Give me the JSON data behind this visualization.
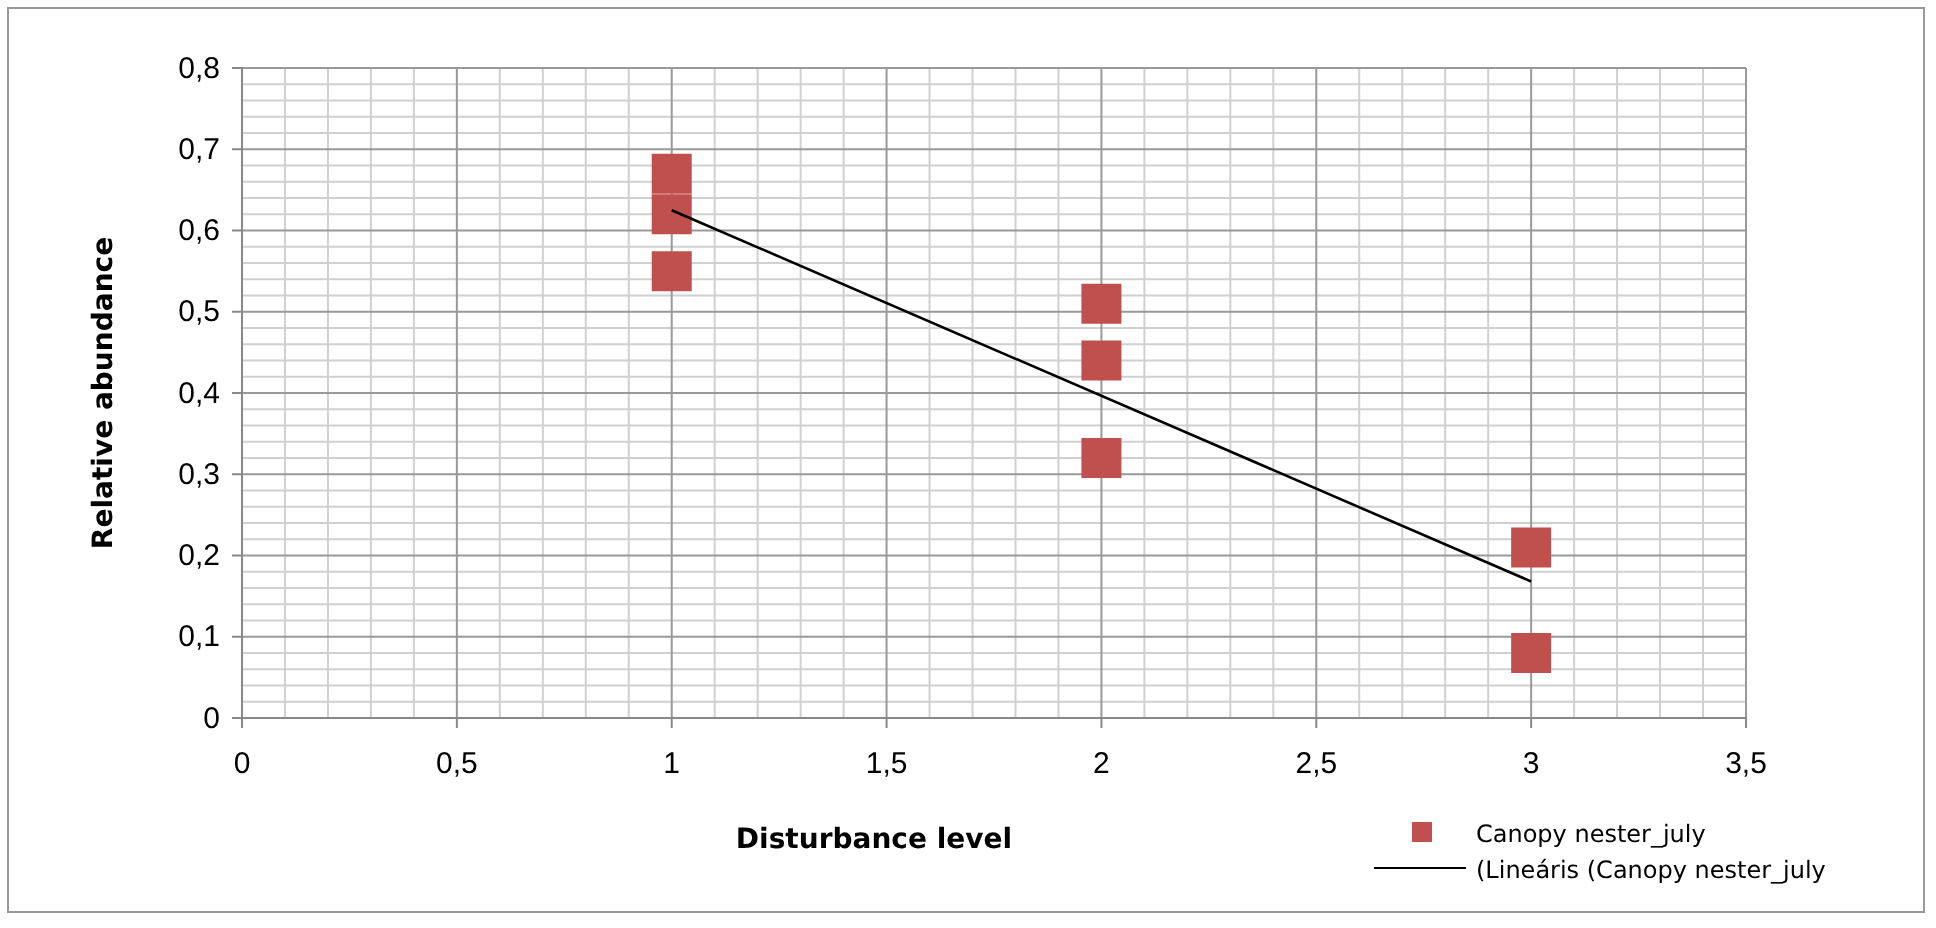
{
  "chart_data": {
    "type": "scatter",
    "xlabel": "Disturbance level",
    "ylabel": "Relative abundance",
    "xlim": [
      0,
      3.5
    ],
    "xticks": [
      {
        "value": 0,
        "label": "0"
      },
      {
        "value": 0.5,
        "label": "0,5"
      },
      {
        "value": 1,
        "label": "1"
      },
      {
        "value": 1.5,
        "label": "1,5"
      },
      {
        "value": 2,
        "label": "2"
      },
      {
        "value": 2.5,
        "label": "2,5"
      },
      {
        "value": 3,
        "label": "3"
      },
      {
        "value": 3.5,
        "label": "3,5"
      }
    ],
    "ylim": [
      0,
      0.8
    ],
    "yticks": [
      {
        "value": 0,
        "label": "0"
      },
      {
        "value": 0.1,
        "label": "0,1"
      },
      {
        "value": 0.2,
        "label": "0,2"
      },
      {
        "value": 0.3,
        "label": "0,3"
      },
      {
        "value": 0.4,
        "label": "0,4"
      },
      {
        "value": 0.5,
        "label": "0,5"
      },
      {
        "value": 0.6,
        "label": "0,6"
      },
      {
        "value": 0.7,
        "label": "0,7"
      },
      {
        "value": 0.8,
        "label": "0,8"
      }
    ],
    "grid": true,
    "legend": "bottom right",
    "series": [
      {
        "name": "Canopy nester_july",
        "marker": "square",
        "color": "#c0504d",
        "x": [
          1,
          1,
          1,
          2,
          2,
          2,
          3,
          3
        ],
        "values": [
          0.67,
          0.62,
          0.55,
          0.51,
          0.44,
          0.32,
          0.21,
          0.08
        ]
      },
      {
        "name": "(Lineáris (Canopy nester_july",
        "type": "line",
        "marker": "none",
        "color": "#000000",
        "line_style": "solid",
        "x": [
          1,
          3
        ],
        "values": [
          0.625,
          0.168
        ]
      }
    ]
  }
}
